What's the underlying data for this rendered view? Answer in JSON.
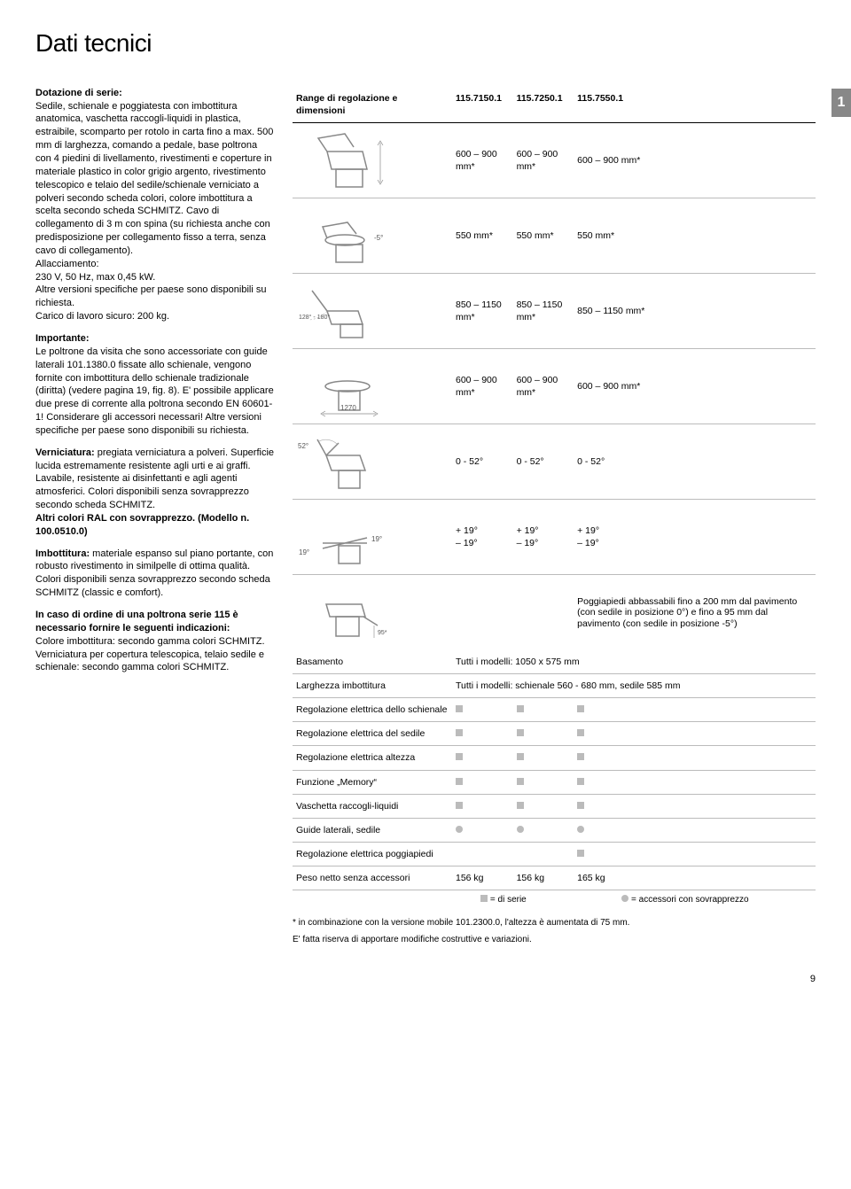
{
  "page_title": "Dati tecnici",
  "page_tab": "1",
  "page_number": "9",
  "left": {
    "dotazione_heading": "Dotazione di serie:",
    "dotazione_body": "Sedile, schienale e poggiatesta con imbottitura anatomica, vaschetta raccogli-liquidi in plastica, estraibile, scomparto per rotolo in carta fino a max. 500 mm di larghezza, comando a pedale, base poltrona con 4 piedini di livellamento, rivestimenti e coperture in materiale plastico in color grigio argento, rivestimento telescopico e telaio del sedile/schienale verniciato a polveri secondo scheda colori, colore imbottitura a scelta secondo scheda SCHMITZ. Cavo di collegamento di 3 m con spina (su richiesta anche con predisposizione per collegamento fisso a terra, senza cavo di collegamento).",
    "allacc_label": "Allacciamento:",
    "allacc_val": "230 V, 50 Hz, max 0,45 kW.",
    "altre_vers": "Altre versioni specifiche per paese sono disponibili su richiesta.",
    "carico": "Carico di lavoro sicuro: 200 kg.",
    "importante_heading": "Importante:",
    "importante_body": "Le poltrone da visita che sono accessoriate con guide laterali 101.1380.0 fissate allo schienale, vengono fornite con imbottitura dello schienale tradizionale (diritta) (vedere pagina 19, fig. 8). E' possibile applicare due prese di corrente alla poltrona secondo EN 60601-1! Considerare gli accessori necessari! Altre versioni specifiche per paese sono disponibili su richiesta.",
    "vernic_heading": "Verniciatura:",
    "vernic_body": " pregiata verniciatura a polveri. Superficie lucida estremamente resistente agli urti e ai graffi. Lavabile, resistente ai disinfettanti e agli agenti atmosferici. Colori disponibili senza sovrapprezzo secondo scheda SCHMITZ.",
    "altri_colori": "Altri colori RAL con sovrapprezzo. (Modello n. 100.0510.0)",
    "imbott_heading": "Imbottitura:",
    "imbott_body": " materiale espanso sul piano portante, con robusto rivestimento in similpelle di ottima qualità. Colori disponibili senza sovrapprezzo secondo scheda SCHMITZ (classic e comfort).",
    "ordine_heading": "In caso di ordine di una poltrona serie 115 è necessario fornire le seguenti indicazioni:",
    "ordine_body": "Colore imbottitura: secondo gamma colori SCHMITZ. Verniciatura per copertura telescopica, telaio sedile e schienale: secondo gamma colori SCHMITZ."
  },
  "table": {
    "header_dim": "Range di regolazione e dimensioni",
    "models": [
      "115.7150.1",
      "115.7250.1",
      "115.7550.1"
    ],
    "dim_rows": [
      {
        "diagram": "height",
        "values": [
          "600 – 900 mm*",
          "600 – 900 mm*",
          "600 – 900 mm*"
        ]
      },
      {
        "diagram": "seat_height",
        "label": "-5°",
        "values": [
          "550 mm*",
          "550 mm*",
          "550 mm*"
        ]
      },
      {
        "diagram": "back_angle",
        "label": "128° - 180°",
        "values": [
          "850 – 1150 mm*",
          "850 – 1150 mm*",
          "850 – 1150 mm*"
        ]
      },
      {
        "diagram": "length",
        "label": "1270",
        "values": [
          "600 – 900 mm*",
          "600 – 900 mm*",
          "600 – 900 mm*"
        ]
      },
      {
        "diagram": "headrest",
        "label": "52°",
        "values": [
          "0 - 52°",
          "0 - 52°",
          "0 - 52°"
        ]
      },
      {
        "diagram": "seat_tilt",
        "label1": "19°",
        "label2": "19°",
        "values_top": [
          "+ 19°",
          "+ 19°",
          "+ 19°"
        ],
        "values_bot": [
          "– 19°",
          "– 19°",
          "– 19°"
        ]
      },
      {
        "diagram": "footrest",
        "label": "95*",
        "note": "Poggiapiedi abbassabili fino a 200 mm dal pavimento (con sedile in posizione 0°) e fino a 95 mm dal pavimento (con sedile in posizione -5°)"
      }
    ],
    "spec_rows": [
      {
        "label": "Basamento",
        "span": "Tutti i modelli: 1050 x 575 mm"
      },
      {
        "label": "Larghezza imbottitura",
        "span": "Tutti i modelli: schienale 560 - 680 mm, sedile 585 mm"
      },
      {
        "label": "Regolazione elettrica dello schienale",
        "marks": [
          "square",
          "square",
          "square"
        ]
      },
      {
        "label": "Regolazione elettrica del sedile",
        "marks": [
          "square",
          "square",
          "square"
        ]
      },
      {
        "label": "Regolazione elettrica altezza",
        "marks": [
          "square",
          "square",
          "square"
        ]
      },
      {
        "label": "Funzione „Memory“",
        "marks": [
          "square",
          "square",
          "square"
        ]
      },
      {
        "label": "Vaschetta raccogli-liquidi",
        "marks": [
          "square",
          "square",
          "square"
        ]
      },
      {
        "label": "Guide laterali, sedile",
        "marks": [
          "circle",
          "circle",
          "circle"
        ]
      },
      {
        "label": "Regolazione elettrica poggiapiedi",
        "marks": [
          "",
          "",
          "square"
        ]
      },
      {
        "label": "Peso netto senza accessori",
        "values": [
          "156 kg",
          "156 kg",
          "165 kg"
        ]
      }
    ],
    "legend_square": "= di serie",
    "legend_circle": "= accessori con sovrapprezzo",
    "footnote1": "* in combinazione con la versione mobile 101.2300.0, l'altezza è aumentata di 75 mm.",
    "footnote2": "E' fatta riserva di apportare modifiche costruttive e variazioni."
  }
}
